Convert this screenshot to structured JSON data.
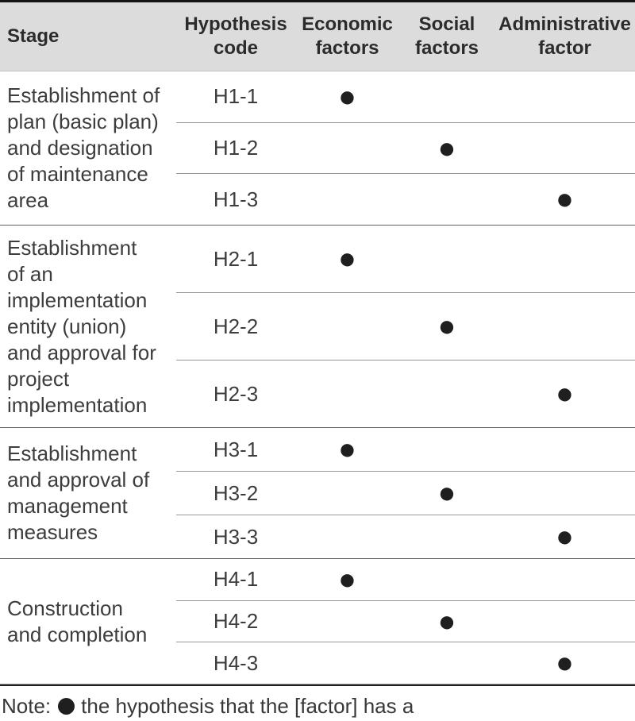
{
  "colors": {
    "header_bg": "#dcdcdc",
    "header_text": "#2b2b2b",
    "body_text": "#3d3d3d",
    "dot": "#1f1f1f",
    "group_divider": "#5f5f5f",
    "row_divider": "#979797",
    "top_rule": "#141414",
    "bottom_rule": "#202020"
  },
  "table": {
    "headers": {
      "stage": "Stage",
      "code": "Hypothesis\ncode",
      "economic": "Economic\nfactors",
      "social": "Social\nfactors",
      "administrative": "Administrative\nfactor"
    },
    "dot_symbol": "●",
    "groups": [
      {
        "stage": "Establishment of\nplan (basic plan)\nand designation\nof maintenance\narea",
        "rows": [
          {
            "code": "H1-1",
            "economic": "●",
            "social": "",
            "administrative": ""
          },
          {
            "code": "H1-2",
            "economic": "",
            "social": "●",
            "administrative": ""
          },
          {
            "code": "H1-3",
            "economic": "",
            "social": "",
            "administrative": "●"
          }
        ]
      },
      {
        "stage": "Establishment\nof an\nimplementation\nentity (union)\nand approval for\nproject\nimplementation",
        "rows": [
          {
            "code": "H2-1",
            "economic": "●",
            "social": "",
            "administrative": ""
          },
          {
            "code": "H2-2",
            "economic": "",
            "social": "●",
            "administrative": ""
          },
          {
            "code": "H2-3",
            "economic": "",
            "social": "",
            "administrative": "●"
          }
        ]
      },
      {
        "stage": "Establishment\nand approval of\nmanagement\nmeasures",
        "rows": [
          {
            "code": "H3-1",
            "economic": "●",
            "social": "",
            "administrative": ""
          },
          {
            "code": "H3-2",
            "economic": "",
            "social": "●",
            "administrative": ""
          },
          {
            "code": "H3-3",
            "economic": "",
            "social": "",
            "administrative": "●"
          }
        ]
      },
      {
        "stage": "Construction\nand completion",
        "rows": [
          {
            "code": "H4-1",
            "economic": "●",
            "social": "",
            "administrative": ""
          },
          {
            "code": "H4-2",
            "economic": "",
            "social": "●",
            "administrative": ""
          },
          {
            "code": "H4-3",
            "economic": "",
            "social": "",
            "administrative": "●"
          }
        ]
      }
    ]
  },
  "note": {
    "prefix": "Note:",
    "text": "the hypothesis that the [factor] has a"
  }
}
